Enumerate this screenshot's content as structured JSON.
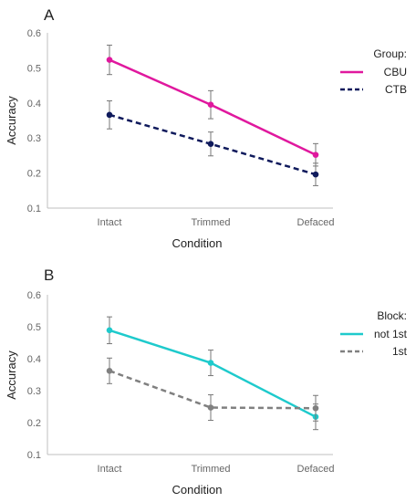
{
  "chart_data": [
    {
      "type": "line",
      "panel_label": "A",
      "title": "",
      "xlabel": "Condition",
      "ylabel": "Accuracy",
      "ylim": [
        0.1,
        0.6
      ],
      "yticks": [
        "0.1",
        "0.2",
        "0.3",
        "0.4",
        "0.5",
        "0.6"
      ],
      "categories": [
        "Intact",
        "Trimmed",
        "Defaced"
      ],
      "legend": {
        "title": "Group:",
        "position": "right"
      },
      "grid": false,
      "series": [
        {
          "name": "CBU",
          "color": "#e0189e",
          "dash": "solid",
          "values": [
            0.523,
            0.395,
            0.252
          ],
          "err": [
            0.042,
            0.04,
            0.032
          ]
        },
        {
          "name": "CTB",
          "color": "#0f1a5c",
          "dash": "dashed",
          "values": [
            0.366,
            0.283,
            0.196
          ],
          "err": [
            0.04,
            0.034,
            0.032
          ]
        }
      ]
    },
    {
      "type": "line",
      "panel_label": "B",
      "title": "",
      "xlabel": "Condition",
      "ylabel": "Accuracy",
      "ylim": [
        0.1,
        0.6
      ],
      "yticks": [
        "0.1",
        "0.2",
        "0.3",
        "0.4",
        "0.5",
        "0.6"
      ],
      "categories": [
        "Intact",
        "Trimmed",
        "Defaced"
      ],
      "legend": {
        "title": "Block:",
        "position": "right"
      },
      "grid": false,
      "series": [
        {
          "name": "not 1st",
          "color": "#1ecacc",
          "dash": "solid",
          "values": [
            0.489,
            0.387,
            0.218
          ],
          "err": [
            0.042,
            0.04,
            0.04
          ]
        },
        {
          "name": "1st",
          "color": "#808080",
          "dash": "dashed",
          "values": [
            0.362,
            0.247,
            0.245
          ],
          "err": [
            0.04,
            0.04,
            0.04
          ]
        }
      ]
    }
  ]
}
